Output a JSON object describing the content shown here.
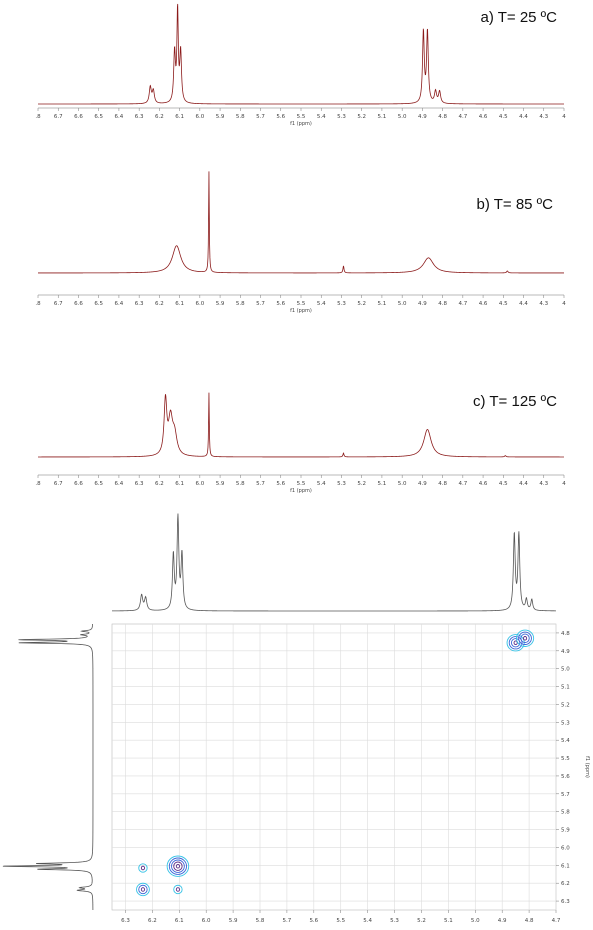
{
  "colors": {
    "spectrum_1d": "#8b1a1a",
    "projection": "#555555",
    "contour_inner": "#5b2a86",
    "contour_mid": "#3a64d8",
    "contour_outer": "#36c2e6",
    "grid": "#dcdcdc"
  },
  "chart_data": [
    {
      "type": "line",
      "title": "a) T= 25 ºC",
      "xlabel": "f1 (ppm)",
      "xlim": [
        6.8,
        4.2
      ],
      "reversed_x": true,
      "xticks": [
        ".8",
        "6.7",
        "6.6",
        "6.5",
        "6.4",
        "6.3",
        "6.2",
        "6.1",
        "6.0",
        "5.9",
        "5.8",
        "5.7",
        "5.6",
        "5.5",
        "5.4",
        "5.3",
        "5.2",
        "5.1",
        "5.0",
        "4.9",
        "4.8",
        "4.7",
        "4.6",
        "4.5",
        "4.4",
        "4.3",
        "4"
      ],
      "peaks": [
        {
          "ppm": 6.245,
          "height": 0.18,
          "width": 0.006
        },
        {
          "ppm": 6.23,
          "height": 0.14,
          "width": 0.006
        },
        {
          "ppm": 6.125,
          "height": 0.55,
          "width": 0.005
        },
        {
          "ppm": 6.11,
          "height": 1.0,
          "width": 0.004
        },
        {
          "ppm": 6.095,
          "height": 0.55,
          "width": 0.005
        },
        {
          "ppm": 4.895,
          "height": 0.78,
          "width": 0.005
        },
        {
          "ppm": 4.875,
          "height": 0.78,
          "width": 0.005
        },
        {
          "ppm": 4.835,
          "height": 0.13,
          "width": 0.006
        },
        {
          "ppm": 4.815,
          "height": 0.13,
          "width": 0.006
        }
      ]
    },
    {
      "type": "line",
      "title": "b) T= 85 ºC",
      "xlabel": "f1 (ppm)",
      "xlim": [
        6.8,
        4.2
      ],
      "reversed_x": true,
      "xticks": [
        ".8",
        "6.7",
        "6.6",
        "6.5",
        "6.4",
        "6.3",
        "6.2",
        "6.1",
        "6.0",
        "5.9",
        "5.8",
        "5.7",
        "5.6",
        "5.5",
        "5.4",
        "5.3",
        "5.2",
        "5.1",
        "5.0",
        "4.9",
        "4.8",
        "4.7",
        "4.6",
        "4.5",
        "4.4",
        "4.3",
        "4"
      ],
      "peaks": [
        {
          "ppm": 6.115,
          "height": 0.27,
          "width": 0.025
        },
        {
          "ppm": 5.955,
          "height": 1.0,
          "width": 0.002
        },
        {
          "ppm": 5.29,
          "height": 0.07,
          "width": 0.003
        },
        {
          "ppm": 4.87,
          "height": 0.15,
          "width": 0.03
        },
        {
          "ppm": 4.48,
          "height": 0.02,
          "width": 0.004
        }
      ]
    },
    {
      "type": "line",
      "title": "c) T= 125 ºC",
      "xlabel": "f1 (ppm)",
      "xlim": [
        6.8,
        4.2
      ],
      "reversed_x": true,
      "xticks": [
        ".8",
        "6.7",
        "6.6",
        "6.5",
        "6.4",
        "6.3",
        "6.2",
        "6.1",
        "6.0",
        "5.9",
        "5.8",
        "5.7",
        "5.6",
        "5.5",
        "5.4",
        "5.3",
        "5.2",
        "5.1",
        "5.0",
        "4.9",
        "4.8",
        "4.7",
        "4.6",
        "4.5",
        "4.4",
        "4.3",
        "4"
      ],
      "peaks": [
        {
          "ppm": 6.17,
          "height": 0.85,
          "width": 0.008
        },
        {
          "ppm": 6.145,
          "height": 0.55,
          "width": 0.012
        },
        {
          "ppm": 6.125,
          "height": 0.32,
          "width": 0.014
        },
        {
          "ppm": 5.955,
          "height": 1.0,
          "width": 0.002
        },
        {
          "ppm": 5.29,
          "height": 0.06,
          "width": 0.003
        },
        {
          "ppm": 4.875,
          "height": 0.43,
          "width": 0.022
        },
        {
          "ppm": 4.49,
          "height": 0.02,
          "width": 0.004
        }
      ]
    },
    {
      "type": "heatmap",
      "title": "",
      "xlabel": "",
      "ylabel": "f1 (ppm)",
      "xlim": [
        6.35,
        4.7
      ],
      "ylim": [
        4.75,
        6.35
      ],
      "xticks": [
        6.3,
        6.2,
        6.1,
        6.0,
        5.9,
        5.8,
        5.7,
        5.6,
        5.5,
        5.4,
        5.3,
        5.2,
        5.1,
        5.0,
        4.9,
        4.8,
        4.7
      ],
      "yticks": [
        4.8,
        4.9,
        5.0,
        5.1,
        5.2,
        5.3,
        5.4,
        5.5,
        5.6,
        5.7,
        5.8,
        5.9,
        6.0,
        6.1,
        6.2,
        6.3
      ],
      "grid": true,
      "projection_peaks": [
        {
          "ppm": 6.24,
          "height": 0.17,
          "width": 0.005
        },
        {
          "ppm": 6.225,
          "height": 0.14,
          "width": 0.005
        },
        {
          "ppm": 6.122,
          "height": 0.6,
          "width": 0.004
        },
        {
          "ppm": 6.105,
          "height": 1.0,
          "width": 0.004
        },
        {
          "ppm": 6.09,
          "height": 0.6,
          "width": 0.004
        },
        {
          "ppm": 4.855,
          "height": 0.83,
          "width": 0.004
        },
        {
          "ppm": 4.838,
          "height": 0.83,
          "width": 0.004
        },
        {
          "ppm": 4.81,
          "height": 0.12,
          "width": 0.004
        },
        {
          "ppm": 4.79,
          "height": 0.12,
          "width": 0.004
        }
      ],
      "cross_peaks": [
        {
          "x": 6.235,
          "y": 6.115,
          "intensity": 1
        },
        {
          "x": 6.235,
          "y": 6.235,
          "intensity": 2
        },
        {
          "x": 6.105,
          "y": 6.105,
          "intensity": 4
        },
        {
          "x": 6.105,
          "y": 6.235,
          "intensity": 1
        },
        {
          "x": 4.85,
          "y": 4.855,
          "intensity": 3
        },
        {
          "x": 4.815,
          "y": 4.83,
          "intensity": 3
        }
      ]
    }
  ]
}
